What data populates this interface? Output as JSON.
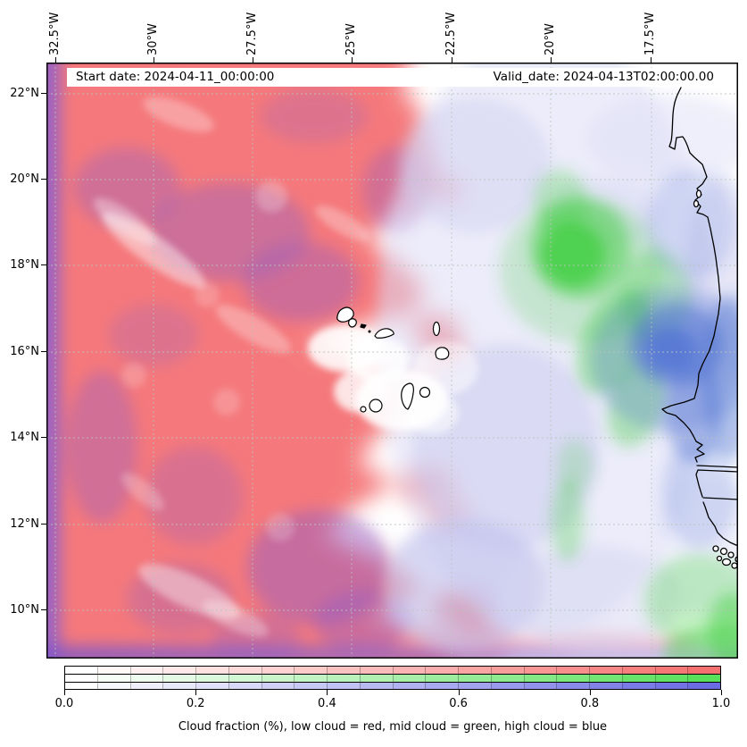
{
  "annotations": {
    "start_date": "Start date: 2024-04-11_00:00:00",
    "valid_date": "Valid_date: 2024-04-13T02:00:00.00"
  },
  "axes": {
    "top_ticks": [
      "32.5°W",
      "30°W",
      "27.5°W",
      "25°W",
      "22.5°W",
      "20°W",
      "17.5°W"
    ],
    "left_ticks": [
      "22°N",
      "20°N",
      "18°N",
      "16°N",
      "14°N",
      "12°N",
      "10°N"
    ]
  },
  "colorbar": {
    "caption": "Cloud fraction (%), low cloud = red, mid cloud = green, high cloud = blue",
    "segments": 20,
    "range": [
      0.0,
      1.0
    ],
    "bands": [
      {
        "name": "low cloud",
        "color": "#f4716f"
      },
      {
        "name": "mid cloud",
        "color": "#58e05a"
      },
      {
        "name": "high cloud",
        "color": "#6b6be4"
      }
    ],
    "ticks": [
      {
        "label": "0.0",
        "value": 0.0
      },
      {
        "label": "0.2",
        "value": 0.2
      },
      {
        "label": "0.4",
        "value": 0.4
      },
      {
        "label": "0.6",
        "value": 0.6
      },
      {
        "label": "0.8",
        "value": 0.8
      },
      {
        "label": "1.0",
        "value": 1.0
      }
    ]
  },
  "chart_data": {
    "type": "heatmap",
    "title": "",
    "subtitle_annotations": [
      "Start date: 2024-04-11_00:00:00",
      "Valid_date: 2024-04-13T02:00:00.00"
    ],
    "x_axis": {
      "ticks": [
        "32.5°W",
        "30°W",
        "27.5°W",
        "25°W",
        "22.5°W",
        "20°W",
        "17.5°W"
      ],
      "position": "top",
      "tick_rotation_deg": 90
    },
    "y_axis": {
      "ticks": [
        "22°N",
        "20°N",
        "18°N",
        "16°N",
        "14°N",
        "12°N",
        "10°N"
      ]
    },
    "geo_extent": {
      "lon_west": -32.7,
      "lon_east": -15.2,
      "lat_south": 8.9,
      "lat_north": 22.7
    },
    "grid": {
      "on": true,
      "style": "dashed",
      "lon_spacing_deg": 2.5,
      "lat_spacing_deg": 2.0
    },
    "colorbar": {
      "orientation": "horizontal",
      "range": [
        0.0,
        1.0
      ],
      "ticks": [
        0.0,
        0.2,
        0.4,
        0.6,
        0.8,
        1.0
      ],
      "label": "Cloud fraction (%), low cloud = red, mid cloud = green, high cloud = blue",
      "bands": [
        "low cloud = red",
        "mid cloud = green",
        "high cloud = blue"
      ]
    },
    "regions": [
      {
        "feature": "low-cloud mass (red, fraction ~0.6-0.9)",
        "where": "western half of domain, ~33°W to ~25°W, 9°N-22.7°N, ragged eastern edge near Cape Verde islands"
      },
      {
        "feature": "high-cloud tint over low cloud (purple/mauve)",
        "where": "along western edge strip and patches inside the red mass; purple band along southern edge ~9°N"
      },
      {
        "feature": "pale high cloud (light blue/lavender, fraction ~0.1-0.3)",
        "where": "central band ~24°W-20°W at all latitudes"
      },
      {
        "feature": "mid-cloud patch (green, fraction ~0.4-0.7)",
        "where": "centered near 19.5°W-18.5°W, 17.5°N-19.5°N, trailing SE toward coast and ~12°N-9.5°N near 18°W"
      },
      {
        "feature": "strong high-cloud patch (blue, fraction ~0.5-0.8)",
        "where": "near the Senegal/Mauritania coast, ~17°W-15.5°W, 15.5°N-17.5°N"
      },
      {
        "feature": "coastline",
        "where": "West Africa: Mauritania (Cap Blanc, Banc d'Arguin), Senegal (Cap-Vert), Gambia river, Casamance, Bijagós islands"
      },
      {
        "feature": "islands",
        "where": "Cape Verde archipelago outlined near 25°W-23°W, 14.8°N-17.1°N"
      }
    ]
  }
}
